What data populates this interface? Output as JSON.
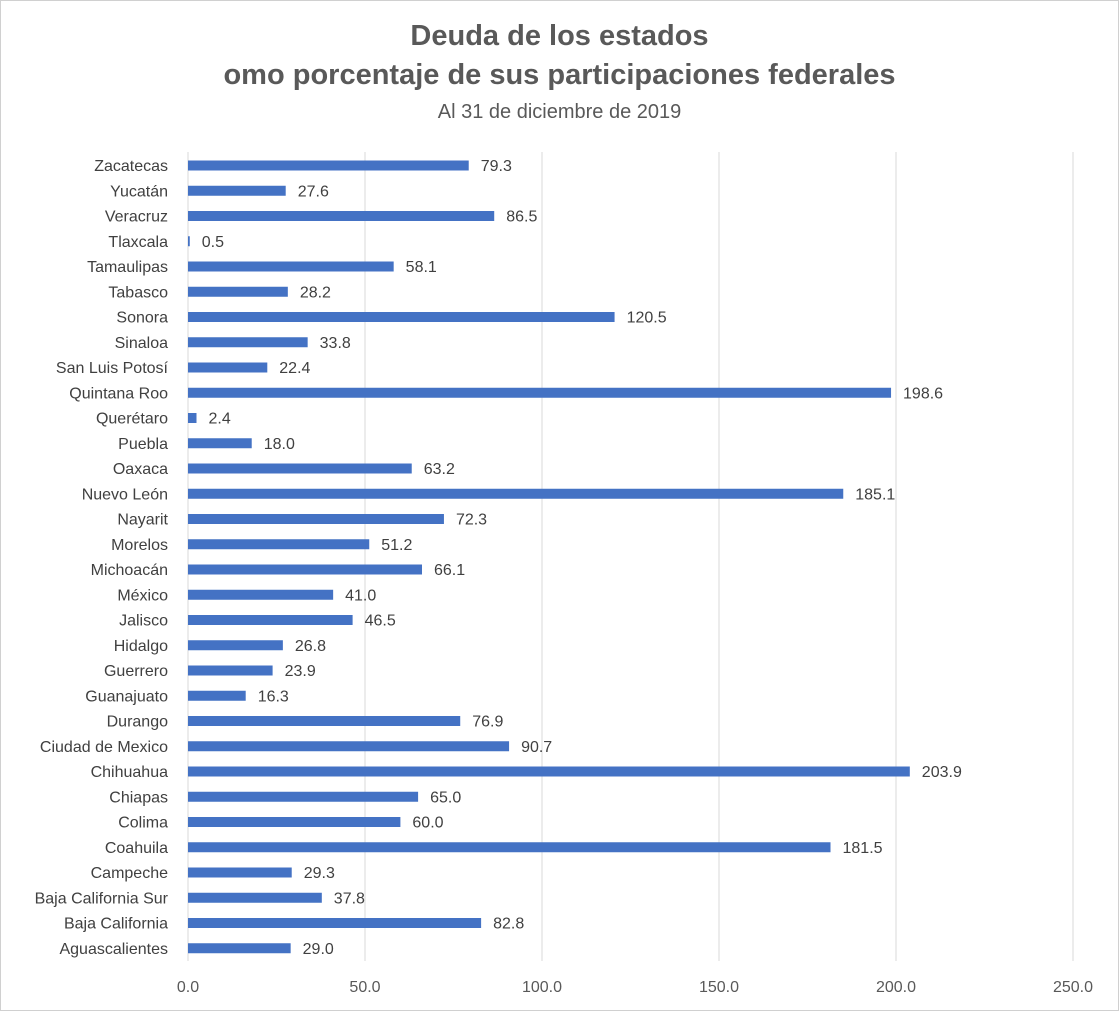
{
  "chart_data": {
    "type": "bar",
    "orientation": "horizontal",
    "title": "Deuda de los estados",
    "title_line2": "omo porcentaje de sus participaciones federales",
    "subtitle": "Al 31 de diciembre de 2019",
    "categories": [
      "Zacatecas",
      "Yucatán",
      "Veracruz",
      "Tlaxcala",
      "Tamaulipas",
      "Tabasco",
      "Sonora",
      "Sinaloa",
      "San Luis Potosí",
      "Quintana Roo",
      "Querétaro",
      "Puebla",
      "Oaxaca",
      "Nuevo León",
      "Nayarit",
      "Morelos",
      "Michoacán",
      "México",
      "Jalisco",
      "Hidalgo",
      "Guerrero",
      "Guanajuato",
      "Durango",
      "Ciudad de Mexico",
      "Chihuahua",
      "Chiapas",
      "Colima",
      "Coahuila",
      "Campeche",
      "Baja California Sur",
      "Baja California",
      "Aguascalientes"
    ],
    "values": [
      79.3,
      27.6,
      86.5,
      0.5,
      58.1,
      28.2,
      120.5,
      33.8,
      22.4,
      198.6,
      2.4,
      18.0,
      63.2,
      185.1,
      72.3,
      51.2,
      66.1,
      41.0,
      46.5,
      26.8,
      23.9,
      16.3,
      76.9,
      90.7,
      203.9,
      65.0,
      60.0,
      181.5,
      29.3,
      37.8,
      82.8,
      29.0
    ],
    "value_labels": [
      "79.3",
      "27.6",
      "86.5",
      "0.5",
      "58.1",
      "28.2",
      "120.5",
      "33.8",
      "22.4",
      "198.6",
      "2.4",
      "18.0",
      "63.2",
      "185.1",
      "72.3",
      "51.2",
      "66.1",
      "41.0",
      "46.5",
      "26.8",
      "23.9",
      "16.3",
      "76.9",
      "90.7",
      "203.9",
      "65.0",
      "60.0",
      "181.5",
      "29.3",
      "37.8",
      "82.8",
      "29.0"
    ],
    "xlim": [
      0,
      250
    ],
    "x_ticks": [
      0,
      50,
      100,
      150,
      200,
      250
    ],
    "x_tick_labels": [
      "0.0",
      "50.0",
      "100.0",
      "150.0",
      "200.0",
      "250.0"
    ],
    "grid": true,
    "legend": "none",
    "bar_color": "#4472C4",
    "grid_color": "#d9d9d9"
  }
}
